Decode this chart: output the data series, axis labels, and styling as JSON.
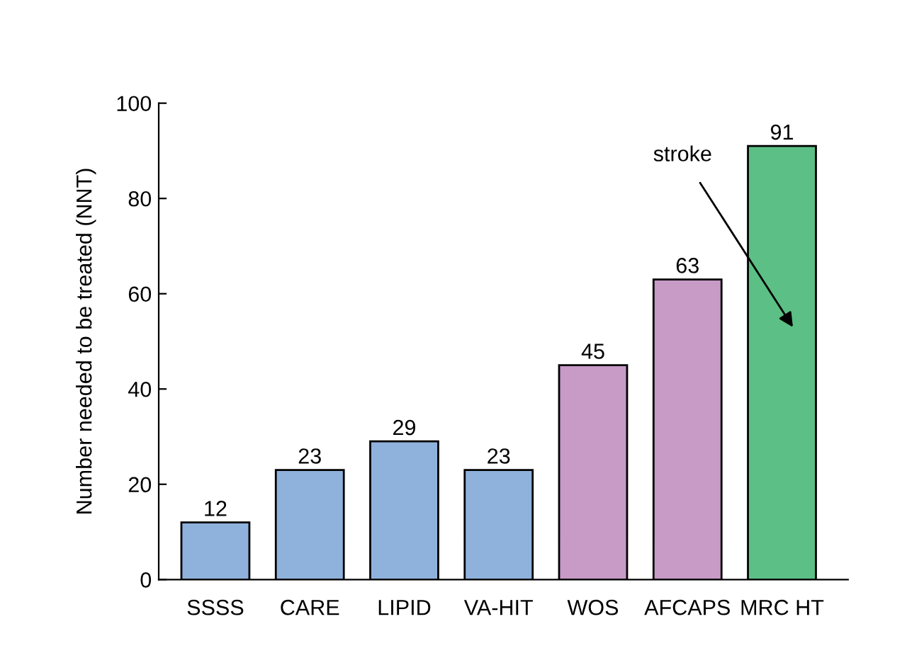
{
  "chart_data": {
    "type": "bar",
    "ylabel": "Number needed to be treated (NNT)",
    "categories": [
      "SSSS",
      "CARE",
      "LIPID",
      "VA-HIT",
      "WOS",
      "AFCAPS",
      "MRC HT"
    ],
    "values": [
      12,
      23,
      29,
      23,
      45,
      63,
      91
    ],
    "colors": [
      "#8fb2dc",
      "#8fb2dc",
      "#8fb2dc",
      "#8fb2dc",
      "#c89ac6",
      "#c89ac6",
      "#5cbf85"
    ],
    "ylim": [
      0,
      100
    ],
    "yticks": [
      0,
      20,
      40,
      60,
      80,
      100
    ],
    "grid": false,
    "data_labels": true,
    "annotations": [
      "stroke"
    ]
  }
}
